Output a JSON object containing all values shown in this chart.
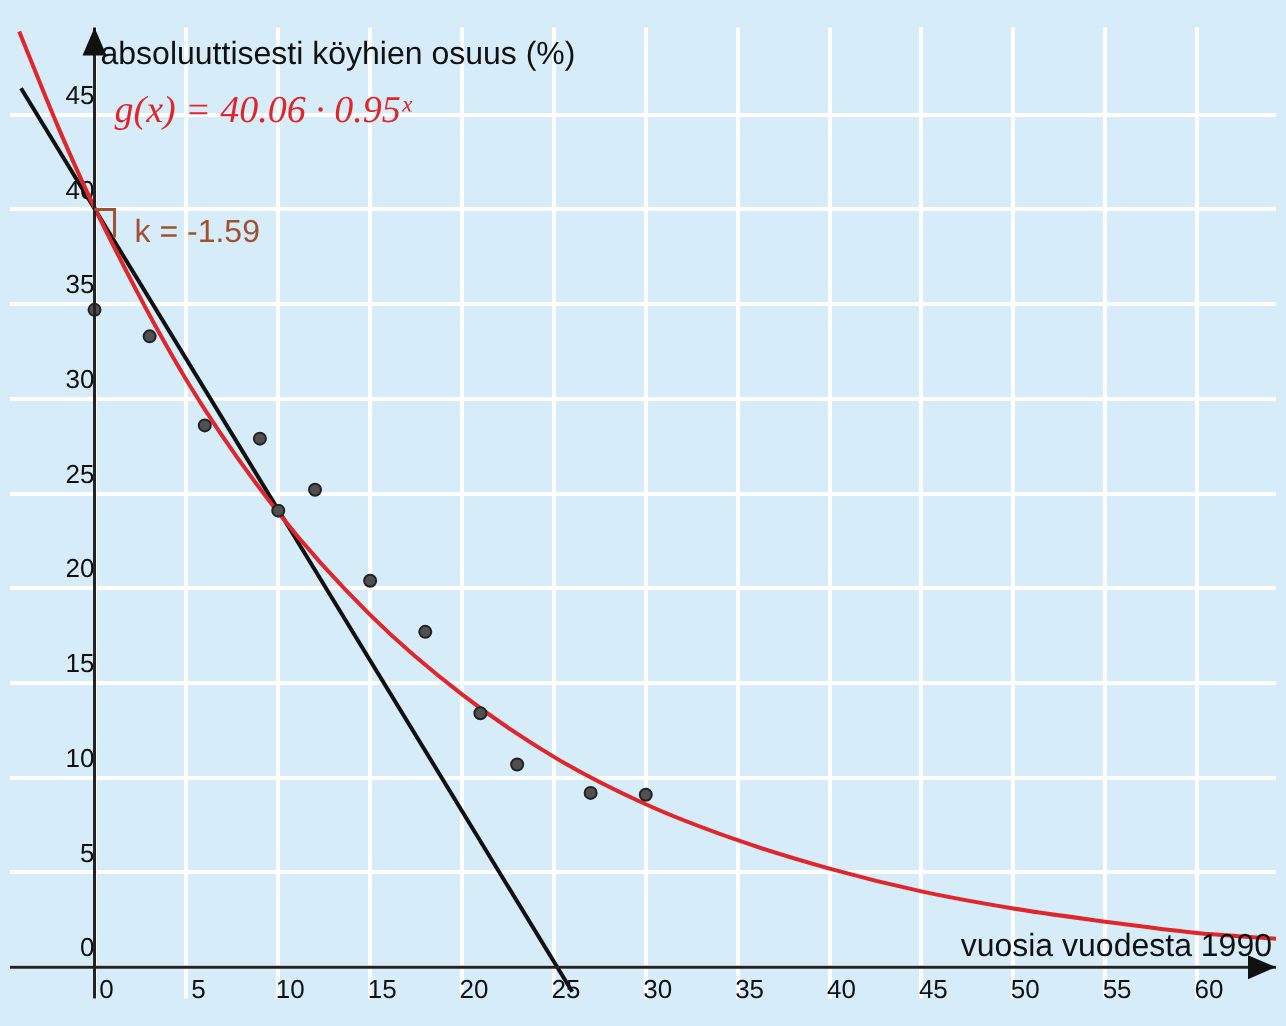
{
  "chart_data": {
    "type": "scatter",
    "xlabel": "vuosia vuodesta 1990",
    "ylabel": "absoluuttisesti köyhien osuus (%)",
    "xlim": [
      -4.6,
      64.3
    ],
    "ylim": [
      -1.65,
      49.6
    ],
    "xticks": [
      0,
      5,
      10,
      15,
      20,
      25,
      30,
      35,
      40,
      45,
      50,
      55,
      60
    ],
    "yticks": [
      0,
      5,
      10,
      15,
      20,
      25,
      30,
      35,
      40,
      45
    ],
    "grid": true,
    "series": [
      {
        "marker": "circle",
        "color": "#505050",
        "x": [
          0,
          3,
          6,
          9,
          10,
          12,
          15,
          18,
          21,
          23,
          27,
          30
        ],
        "values": [
          34.7,
          33.3,
          28.6,
          27.9,
          24.1,
          25.2,
          20.4,
          17.7,
          13.4,
          10.7,
          9.2,
          9.1
        ]
      },
      {
        "type": "line",
        "color": "#e0252b",
        "x": [
          -4.1,
          -2,
          0,
          5,
          10,
          15,
          20,
          25,
          30,
          35,
          40,
          45,
          50,
          55,
          60,
          64.3
        ],
        "values": [
          49.4,
          44.4,
          40.1,
          31,
          24,
          18.6,
          14.4,
          11.1,
          8.6,
          6.7,
          5.2,
          4,
          3.1,
          2.4,
          1.8,
          1.5
        ]
      },
      {
        "type": "line",
        "color": "#111111",
        "x": [
          -4,
          26
        ],
        "values": [
          46.4,
          -1.3
        ]
      }
    ],
    "annotations": [
      "g(x) = 40.06 · 0.95ˣ",
      {
        "text": "k = -1.59",
        "x": 0,
        "y": 40
      }
    ]
  }
}
